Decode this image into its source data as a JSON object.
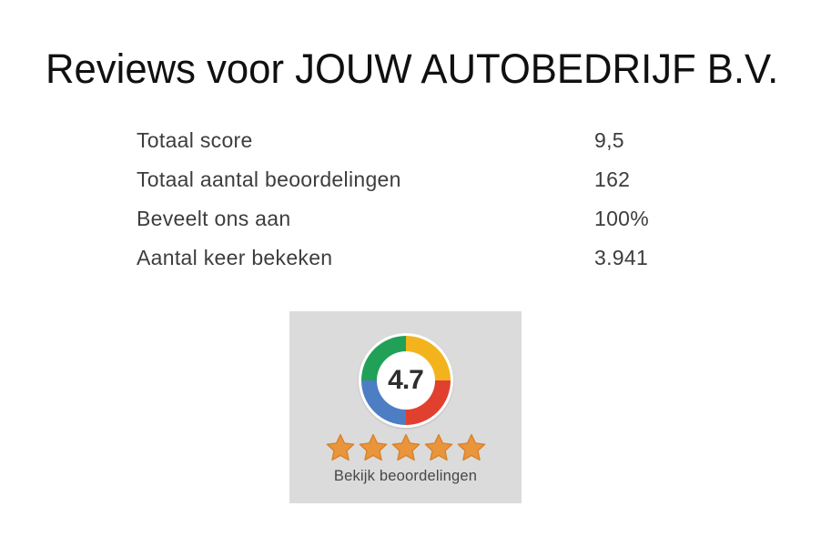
{
  "page": {
    "title": "Reviews voor JOUW AUTOBEDRIJF B.V."
  },
  "stats": {
    "rows": [
      {
        "label": "Totaal score",
        "value": "9,5"
      },
      {
        "label": "Totaal aantal beoordelingen",
        "value": "162"
      },
      {
        "label": "Beveelt ons aan",
        "value": "100%"
      },
      {
        "label": "Aantal keer bekeken",
        "value": "3.941"
      }
    ]
  },
  "widget": {
    "score": "4.7",
    "stars_count": 5,
    "link_label": "Bekijk beoordelingen",
    "colors": {
      "green": "#21a157",
      "yellow": "#f2b31d",
      "red": "#e2402f",
      "blue": "#4d7ec3",
      "star": "#e9953c",
      "star_stroke": "#d8832c",
      "box_bg": "#dbdbdb"
    }
  }
}
